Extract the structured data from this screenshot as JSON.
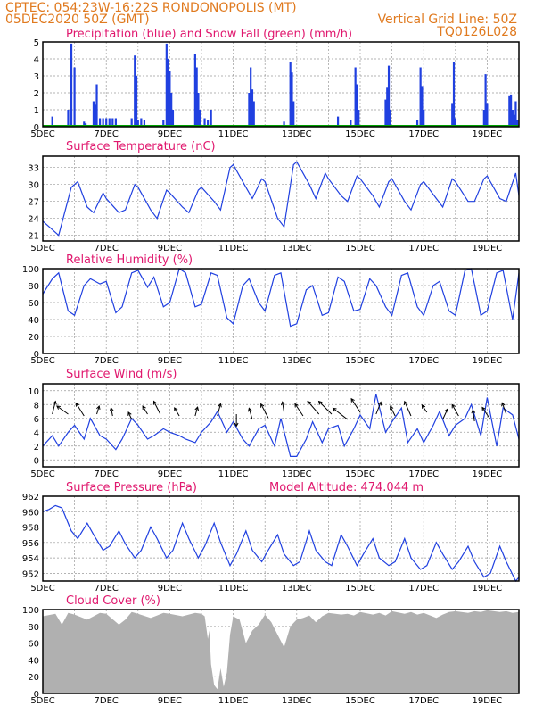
{
  "header": {
    "line1": "CPTEC:   054:23W-16:22S   RONDONOPOLIS (MT)",
    "line2_left": "05DEC2020 50Z (GMT)",
    "line2_right": "Vertical Grid Line: 50Z",
    "code": "TQ0126L028"
  },
  "colors": {
    "header": "#e07a1f",
    "panel_title": "#e0186e",
    "series": "#2040e0",
    "snow": "#00a000",
    "cloud": "#b0b0b0"
  },
  "x_ticks": [
    "5DEC",
    "7DEC",
    "9DEC",
    "11DEC",
    "13DEC",
    "15DEC",
    "17DEC",
    "19DEC"
  ],
  "chart_data": [
    {
      "id": "precip",
      "type": "bar",
      "title": "Precipitation (blue) and Snow Fall (green) (mm/h)",
      "ylim": [
        0,
        5
      ],
      "yticks": [
        "0",
        "1",
        "2",
        "3",
        "4",
        "5"
      ],
      "grid": true,
      "x_range_days": [
        5,
        20
      ],
      "bars": [
        [
          5.3,
          0.6
        ],
        [
          5.8,
          1.0
        ],
        [
          5.9,
          4.9
        ],
        [
          6.0,
          3.5
        ],
        [
          6.3,
          0.3
        ],
        [
          6.35,
          0.2
        ],
        [
          6.6,
          1.5
        ],
        [
          6.65,
          1.3
        ],
        [
          6.7,
          2.5
        ],
        [
          6.8,
          0.5
        ],
        [
          6.9,
          0.5
        ],
        [
          7.0,
          0.5
        ],
        [
          7.1,
          0.5
        ],
        [
          7.2,
          0.5
        ],
        [
          7.3,
          0.5
        ],
        [
          7.8,
          0.5
        ],
        [
          7.9,
          4.2
        ],
        [
          7.95,
          3.0
        ],
        [
          8.0,
          0.4
        ],
        [
          8.1,
          0.5
        ],
        [
          8.2,
          0.4
        ],
        [
          8.8,
          0.4
        ],
        [
          8.9,
          4.9
        ],
        [
          8.95,
          4.0
        ],
        [
          9.0,
          3.3
        ],
        [
          9.05,
          2.0
        ],
        [
          9.1,
          1.0
        ],
        [
          9.8,
          4.3
        ],
        [
          9.85,
          3.5
        ],
        [
          9.9,
          2.0
        ],
        [
          9.95,
          1.0
        ],
        [
          10.1,
          0.5
        ],
        [
          10.2,
          0.4
        ],
        [
          10.3,
          1.0
        ],
        [
          11.5,
          2.0
        ],
        [
          11.55,
          3.5
        ],
        [
          11.6,
          2.2
        ],
        [
          11.65,
          1.5
        ],
        [
          12.6,
          0.3
        ],
        [
          12.8,
          3.8
        ],
        [
          12.85,
          3.2
        ],
        [
          12.9,
          1.5
        ],
        [
          14.3,
          0.6
        ],
        [
          14.7,
          0.4
        ],
        [
          14.85,
          3.5
        ],
        [
          14.9,
          2.5
        ],
        [
          14.95,
          1.0
        ],
        [
          15.8,
          1.6
        ],
        [
          15.85,
          2.3
        ],
        [
          15.9,
          3.6
        ],
        [
          15.95,
          1.0
        ],
        [
          16.8,
          0.4
        ],
        [
          16.9,
          3.5
        ],
        [
          16.95,
          2.4
        ],
        [
          17.0,
          1.0
        ],
        [
          17.9,
          1.4
        ],
        [
          17.95,
          3.8
        ],
        [
          18.0,
          0.5
        ],
        [
          18.9,
          1.0
        ],
        [
          18.95,
          3.1
        ],
        [
          19.0,
          1.4
        ],
        [
          19.7,
          1.8
        ],
        [
          19.75,
          1.9
        ],
        [
          19.8,
          1.0
        ],
        [
          19.85,
          0.7
        ],
        [
          19.9,
          1.5
        ],
        [
          19.95,
          0.4
        ]
      ],
      "snow": 0
    },
    {
      "id": "temp",
      "type": "line",
      "title": "Surface Temperature (nC)",
      "ylim": [
        20,
        35
      ],
      "yticks": [
        "21",
        "24",
        "27",
        "30",
        "33"
      ],
      "ytick_values": [
        21,
        24,
        27,
        30,
        33
      ],
      "grid": true,
      "x": [
        5.0,
        5.3,
        5.5,
        5.9,
        6.1,
        6.4,
        6.6,
        6.9,
        7.0,
        7.4,
        7.6,
        7.9,
        8.0,
        8.4,
        8.6,
        8.9,
        9.0,
        9.4,
        9.6,
        9.9,
        10.0,
        10.4,
        10.6,
        10.9,
        11.0,
        11.4,
        11.6,
        11.9,
        12.0,
        12.4,
        12.6,
        12.9,
        13.0,
        13.4,
        13.6,
        13.9,
        14.0,
        14.4,
        14.6,
        14.9,
        15.0,
        15.4,
        15.6,
        15.9,
        16.0,
        16.4,
        16.6,
        16.9,
        17.0,
        17.4,
        17.6,
        17.9,
        18.0,
        18.4,
        18.6,
        18.9,
        19.0,
        19.4,
        19.6,
        19.9,
        20.0
      ],
      "y": [
        23.5,
        22.0,
        21.0,
        29.5,
        30.5,
        26.0,
        25.0,
        28.5,
        27.5,
        25.0,
        25.5,
        30.0,
        29.5,
        25.5,
        24.0,
        29.0,
        28.5,
        26.0,
        25.0,
        29.0,
        29.5,
        27.0,
        25.5,
        33.0,
        33.5,
        29.5,
        27.5,
        31.0,
        30.5,
        24.0,
        22.5,
        33.5,
        34.0,
        30.0,
        27.5,
        32.0,
        31.0,
        28.0,
        27.0,
        31.5,
        31.0,
        28.0,
        26.0,
        30.5,
        31.0,
        27.0,
        25.5,
        30.0,
        30.5,
        27.5,
        26.0,
        31.0,
        30.5,
        27.0,
        27.0,
        31.0,
        31.5,
        27.5,
        27.0,
        32.0,
        28.0
      ]
    },
    {
      "id": "rh",
      "type": "line",
      "title": "Relative Humidity (%)",
      "ylim": [
        0,
        100
      ],
      "yticks": [
        "0",
        "20",
        "40",
        "60",
        "80",
        "100"
      ],
      "ytick_values": [
        0,
        20,
        40,
        60,
        80,
        100
      ],
      "grid": true,
      "x": [
        5.0,
        5.3,
        5.5,
        5.8,
        6.0,
        6.3,
        6.5,
        6.8,
        7.0,
        7.3,
        7.5,
        7.8,
        8.0,
        8.3,
        8.5,
        8.8,
        9.0,
        9.3,
        9.5,
        9.8,
        10.0,
        10.3,
        10.5,
        10.8,
        11.0,
        11.3,
        11.5,
        11.8,
        12.0,
        12.3,
        12.5,
        12.8,
        13.0,
        13.3,
        13.5,
        13.8,
        14.0,
        14.3,
        14.5,
        14.8,
        15.0,
        15.3,
        15.5,
        15.8,
        16.0,
        16.3,
        16.5,
        16.8,
        17.0,
        17.3,
        17.5,
        17.8,
        18.0,
        18.3,
        18.5,
        18.8,
        19.0,
        19.3,
        19.5,
        19.8,
        20.0
      ],
      "y": [
        70,
        88,
        95,
        50,
        45,
        80,
        88,
        82,
        85,
        48,
        55,
        95,
        98,
        78,
        90,
        55,
        60,
        100,
        95,
        55,
        58,
        95,
        92,
        42,
        35,
        80,
        88,
        60,
        50,
        92,
        95,
        32,
        35,
        75,
        80,
        45,
        48,
        90,
        85,
        50,
        52,
        88,
        80,
        55,
        45,
        92,
        95,
        55,
        45,
        80,
        85,
        50,
        45,
        98,
        100,
        45,
        50,
        95,
        98,
        40,
        95
      ]
    },
    {
      "id": "wind",
      "type": "line",
      "title": "Surface Wind (m/s)",
      "ylim": [
        -1,
        11
      ],
      "yticks": [
        "0",
        "2",
        "4",
        "6",
        "8",
        "10"
      ],
      "ytick_values": [
        0,
        2,
        4,
        6,
        8,
        10
      ],
      "grid": true,
      "x": [
        5.0,
        5.3,
        5.5,
        5.8,
        6.0,
        6.3,
        6.5,
        6.8,
        7.0,
        7.3,
        7.5,
        7.8,
        8.0,
        8.3,
        8.5,
        8.8,
        9.0,
        9.3,
        9.5,
        9.8,
        10.0,
        10.3,
        10.5,
        10.8,
        11.0,
        11.3,
        11.5,
        11.8,
        12.0,
        12.3,
        12.5,
        12.8,
        13.0,
        13.3,
        13.5,
        13.8,
        14.0,
        14.3,
        14.5,
        14.8,
        15.0,
        15.3,
        15.5,
        15.8,
        16.0,
        16.3,
        16.5,
        16.8,
        17.0,
        17.3,
        17.5,
        17.8,
        18.0,
        18.3,
        18.5,
        18.8,
        19.0,
        19.3,
        19.5,
        19.8,
        20.0
      ],
      "y": [
        2.0,
        3.5,
        2.0,
        4.0,
        5.0,
        3.0,
        6.0,
        3.5,
        3.0,
        1.5,
        3.0,
        6.0,
        5.0,
        3.0,
        3.5,
        4.5,
        4.0,
        3.5,
        3.0,
        2.5,
        4.0,
        5.5,
        7.0,
        4.0,
        5.5,
        3.0,
        2.0,
        4.5,
        5.0,
        2.0,
        6.0,
        0.5,
        0.5,
        3.0,
        5.5,
        2.5,
        4.5,
        5.0,
        2.0,
        4.5,
        6.5,
        4.5,
        9.5,
        4.0,
        5.5,
        7.5,
        2.5,
        4.5,
        2.5,
        5.0,
        7.0,
        3.5,
        5.0,
        6.0,
        8.0,
        3.5,
        9.0,
        2.0,
        7.5,
        6.5,
        3.0
      ],
      "arrows": [
        [
          5.3,
          0.4,
          -1.6,
          0.2
        ],
        [
          5.8,
          -1.4,
          -1.0,
          0.2
        ],
        [
          6.3,
          -1.0,
          -1.6,
          0.3
        ],
        [
          6.7,
          0.3,
          -1.0,
          0.2
        ],
        [
          7.2,
          -0.2,
          -1.0,
          0.3
        ],
        [
          7.8,
          -0.4,
          -0.9,
          0.5
        ],
        [
          8.3,
          -0.6,
          -1.0,
          0.2
        ],
        [
          8.7,
          -0.8,
          -1.6,
          0.2
        ],
        [
          9.3,
          -0.6,
          -1.0,
          0.3
        ],
        [
          9.8,
          0.3,
          -1.1,
          0.3
        ],
        [
          10.5,
          0.4,
          -1.5,
          0.3
        ],
        [
          11.1,
          0.0,
          1.5,
          0.2
        ],
        [
          11.6,
          -0.4,
          -1.4,
          0.5
        ],
        [
          12.1,
          -0.9,
          -1.7,
          0.4
        ],
        [
          12.6,
          -0.2,
          -1.3,
          0.1
        ],
        [
          13.2,
          -1.0,
          -1.5,
          0.3
        ],
        [
          13.7,
          -1.4,
          -1.6,
          0.2
        ],
        [
          14.1,
          -1.6,
          -1.6,
          0.2
        ],
        [
          14.6,
          -1.8,
          -1.4,
          0.5
        ],
        [
          15.0,
          -1.1,
          -1.7,
          0.1
        ],
        [
          15.5,
          0.6,
          -1.5,
          0.2
        ],
        [
          16.1,
          -0.6,
          -1.2,
          0.3
        ],
        [
          16.6,
          -0.8,
          -1.8,
          0.3
        ],
        [
          17.1,
          -0.6,
          -0.9,
          0.1
        ],
        [
          17.6,
          0.6,
          -1.3,
          0.5
        ],
        [
          18.1,
          -0.8,
          -1.4,
          0.3
        ],
        [
          18.6,
          -0.2,
          -1.4,
          0.6
        ],
        [
          19.1,
          -1.0,
          -1.5,
          0.5
        ],
        [
          19.6,
          -0.5,
          -1.4,
          0.2
        ]
      ]
    },
    {
      "id": "pres",
      "type": "line",
      "title": "Surface Pressure (hPa)",
      "extra_label": "Model Altitude: 474.044 m",
      "ylim": [
        951,
        962
      ],
      "yticks": [
        "952",
        "954",
        "956",
        "958",
        "960",
        "962"
      ],
      "ytick_values": [
        952,
        954,
        956,
        958,
        960,
        962
      ],
      "grid": true,
      "x": [
        5.0,
        5.2,
        5.4,
        5.6,
        5.9,
        6.1,
        6.4,
        6.6,
        6.9,
        7.1,
        7.4,
        7.6,
        7.9,
        8.1,
        8.4,
        8.6,
        8.9,
        9.1,
        9.4,
        9.6,
        9.9,
        10.1,
        10.4,
        10.6,
        10.9,
        11.1,
        11.4,
        11.6,
        11.9,
        12.1,
        12.4,
        12.6,
        12.9,
        13.1,
        13.4,
        13.6,
        13.9,
        14.1,
        14.4,
        14.6,
        14.9,
        15.1,
        15.4,
        15.6,
        15.9,
        16.1,
        16.4,
        16.6,
        16.9,
        17.1,
        17.4,
        17.6,
        17.9,
        18.1,
        18.4,
        18.6,
        18.9,
        19.1,
        19.4,
        19.6,
        19.9,
        20.0
      ],
      "y": [
        960.0,
        960.3,
        960.8,
        960.5,
        957.5,
        956.5,
        958.5,
        957.0,
        955.0,
        955.5,
        957.5,
        955.8,
        954.0,
        955.0,
        958.0,
        956.5,
        954.0,
        955.0,
        958.5,
        956.5,
        954.0,
        955.5,
        958.5,
        956.0,
        953.0,
        954.5,
        957.5,
        955.0,
        953.5,
        955.0,
        957.0,
        954.5,
        953.0,
        953.5,
        957.5,
        955.0,
        953.5,
        953.0,
        957.0,
        955.5,
        953.0,
        954.5,
        956.5,
        954.0,
        953.0,
        953.5,
        956.5,
        954.0,
        952.5,
        953.0,
        956.0,
        954.5,
        952.5,
        953.5,
        955.5,
        953.5,
        951.5,
        952.0,
        955.5,
        953.5,
        951.0,
        951.5
      ]
    },
    {
      "id": "cloud",
      "type": "area",
      "title": "Cloud Cover (%)",
      "ylim": [
        0,
        100
      ],
      "yticks": [
        "0",
        "20",
        "40",
        "60",
        "80",
        "100"
      ],
      "ytick_values": [
        0,
        20,
        40,
        60,
        80,
        100
      ],
      "grid": true,
      "x": [
        5.0,
        5.4,
        5.6,
        5.8,
        6.0,
        6.4,
        6.6,
        6.8,
        7.0,
        7.4,
        7.6,
        7.8,
        8.0,
        8.4,
        8.6,
        8.8,
        9.0,
        9.4,
        9.6,
        9.8,
        10.0,
        10.1,
        10.2,
        10.25,
        10.3,
        10.4,
        10.5,
        10.6,
        10.7,
        10.8,
        10.9,
        11.0,
        11.2,
        11.4,
        11.6,
        11.8,
        12.0,
        12.2,
        12.4,
        12.6,
        12.8,
        13.0,
        13.2,
        13.4,
        13.6,
        13.8,
        14.0,
        14.4,
        14.6,
        14.8,
        15.0,
        15.4,
        15.6,
        15.8,
        16.0,
        16.4,
        16.6,
        16.8,
        17.0,
        17.4,
        17.6,
        17.8,
        18.0,
        18.4,
        18.6,
        18.8,
        19.0,
        19.4,
        19.6,
        19.8,
        20.0
      ],
      "y": [
        92,
        95,
        82,
        96,
        94,
        88,
        92,
        96,
        95,
        82,
        88,
        97,
        95,
        90,
        93,
        96,
        95,
        92,
        94,
        96,
        95,
        92,
        65,
        75,
        35,
        10,
        5,
        30,
        8,
        25,
        70,
        92,
        88,
        60,
        75,
        82,
        94,
        85,
        70,
        55,
        80,
        88,
        90,
        93,
        85,
        92,
        96,
        94,
        95,
        93,
        97,
        94,
        96,
        93,
        98,
        95,
        97,
        94,
        96,
        90,
        94,
        97,
        98,
        96,
        98,
        97,
        99,
        97,
        98,
        96,
        97
      ]
    }
  ]
}
